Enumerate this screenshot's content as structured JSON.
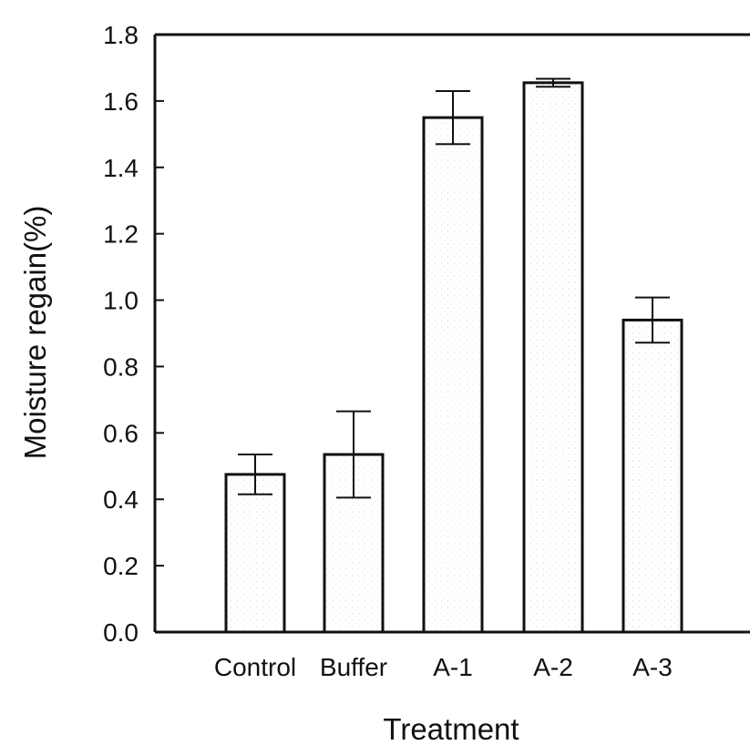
{
  "chart_data": {
    "type": "bar",
    "title": "",
    "xlabel": "Treatment",
    "ylabel": "Moisture regain(%)",
    "categories": [
      "Control",
      "Buffer",
      "A-1",
      "A-2",
      "A-3"
    ],
    "values": [
      0.475,
      0.535,
      1.55,
      1.655,
      0.94
    ],
    "errors": [
      0.06,
      0.13,
      0.08,
      0.012,
      0.068
    ],
    "ylim": [
      0,
      1.8
    ],
    "yticks": [
      "0.0",
      "0.2",
      "0.4",
      "0.6",
      "0.8",
      "1.0",
      "1.2",
      "1.4",
      "1.6",
      "1.8"
    ],
    "grid": false,
    "legend": "none",
    "bar_style": "white fill with light stipple",
    "colors": {
      "axis": "#111111",
      "bar_edge": "#111111",
      "bar_fill": "#ffffff",
      "stipple": "#bbbbbb"
    }
  }
}
